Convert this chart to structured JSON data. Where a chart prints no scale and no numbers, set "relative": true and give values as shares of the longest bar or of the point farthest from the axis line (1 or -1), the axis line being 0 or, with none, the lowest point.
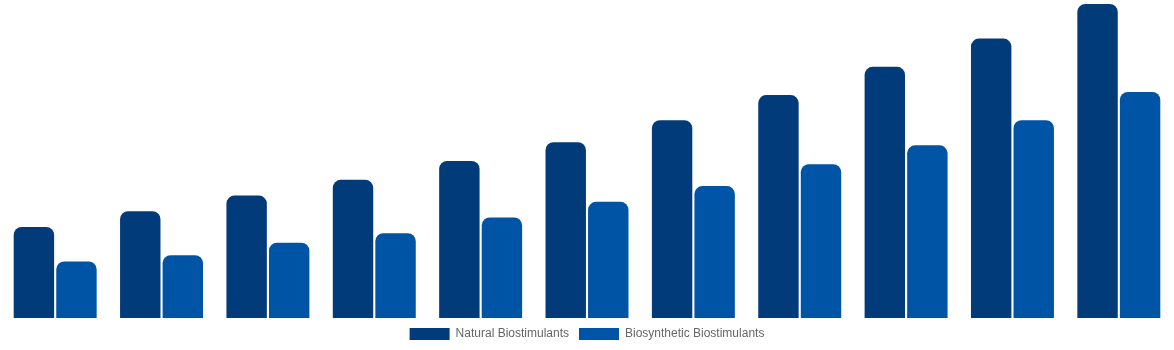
{
  "chart_data": {
    "type": "bar",
    "relative": true,
    "categories": [
      null,
      null,
      null,
      null,
      null,
      null,
      null,
      null,
      null,
      null,
      null
    ],
    "series": [
      {
        "name": "Natural Biostimulants",
        "color": "#023b7a",
        "values": [
          0.29,
          0.34,
          0.39,
          0.44,
          0.5,
          0.56,
          0.63,
          0.71,
          0.8,
          0.89,
          1
        ]
      },
      {
        "name": "Biosynthetic Biostimulants",
        "color": "#0054a6",
        "values": [
          0.18,
          0.2,
          0.24,
          0.27,
          0.32,
          0.37,
          0.42,
          0.49,
          0.55,
          0.63,
          0.72
        ]
      }
    ],
    "legend": "bottom"
  }
}
